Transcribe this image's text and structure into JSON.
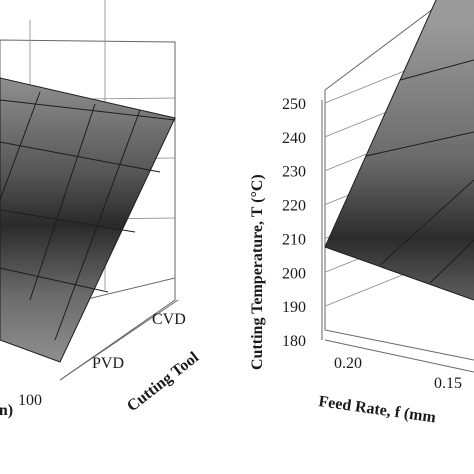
{
  "chart_data": [
    {
      "type": "surface",
      "x_label": "Cutting Tool",
      "x_ticks": [
        "PVD",
        "CVD"
      ],
      "y_label": "(m/min)",
      "y_ticks": [
        "100"
      ],
      "colors": {
        "surface_light": "#9a9a9a",
        "surface_dark": "#2a2a2a",
        "mesh": "#1e1e1e"
      }
    },
    {
      "type": "surface",
      "z_label": "Cutting Temperature, T (°C)",
      "z_ticks": [
        "180",
        "190",
        "200",
        "210",
        "220",
        "230",
        "240",
        "250"
      ],
      "zlim": [
        180,
        250
      ],
      "x_label": "Feed Rate, f (mm",
      "x_ticks": [
        "0.20",
        "0.15"
      ],
      "surface_range": [
        206,
        250
      ],
      "colors": {
        "surface_light": "#9a9a9a",
        "surface_dark": "#2a2a2a",
        "mesh": "#1e1e1e"
      }
    }
  ]
}
